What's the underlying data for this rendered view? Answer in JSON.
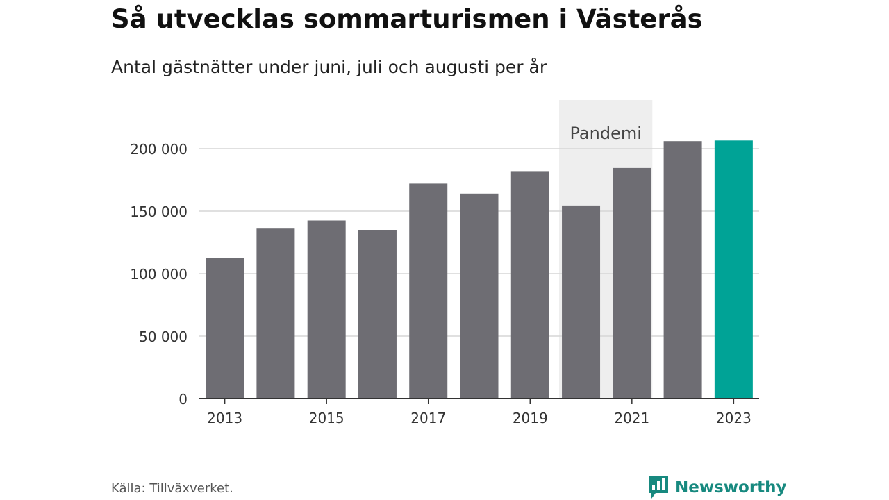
{
  "header": {
    "title": "Så utvecklas sommarturismen i Västerås",
    "subtitle": "Antal gästnätter under juni, juli och augusti per år"
  },
  "chart_data": {
    "type": "bar",
    "title": "Så utvecklas sommarturismen i Västerås",
    "subtitle": "Antal gästnätter under juni, juli och augusti per år",
    "xlabel": "",
    "ylabel": "",
    "categories": [
      "2013",
      "2014",
      "2015",
      "2016",
      "2017",
      "2018",
      "2019",
      "2020",
      "2021",
      "2022",
      "2023"
    ],
    "values": [
      112500,
      136000,
      142500,
      135000,
      172000,
      164000,
      182000,
      154500,
      184500,
      206000,
      206500
    ],
    "x_tick_labels": [
      "2013",
      "2015",
      "2017",
      "2019",
      "2021",
      "2023"
    ],
    "y_ticks": [
      0,
      50000,
      100000,
      150000,
      200000
    ],
    "y_tick_labels": [
      "0",
      "50 000",
      "100 000",
      "150 000",
      "200 000"
    ],
    "ylim": [
      0,
      220000
    ],
    "grid": true,
    "legend": "none",
    "bar_color": "#6e6d73",
    "highlight": {
      "category": "2023",
      "color": "#00a396"
    },
    "annotation": {
      "label": "Pandemi",
      "from": "2020",
      "to": "2021",
      "color": "#eeeeee"
    }
  },
  "footer": {
    "source": "Källa: Tillväxverket.",
    "brand_name": "Newsworthy",
    "brand_icon": "newsworthy-logo-icon",
    "brand_color": "#17897f"
  }
}
